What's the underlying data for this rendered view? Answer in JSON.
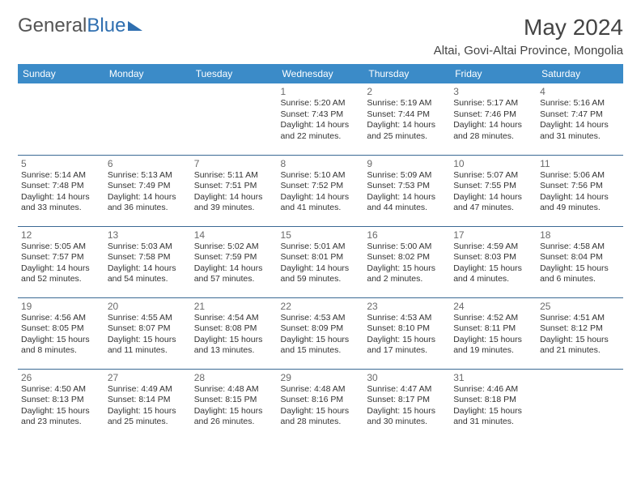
{
  "header": {
    "logo_general": "General",
    "logo_blue": "Blue",
    "title": "May 2024",
    "location": "Altai, Govi-Altai Province, Mongolia"
  },
  "colors": {
    "header_bg": "#3b8bc8",
    "header_text": "#ffffff",
    "row_border": "#3b6a94",
    "daynum_color": "#6a6a6a",
    "body_text": "#333333",
    "logo_blue": "#2f6fb0",
    "logo_grey": "#555555"
  },
  "weekdays": [
    "Sunday",
    "Monday",
    "Tuesday",
    "Wednesday",
    "Thursday",
    "Friday",
    "Saturday"
  ],
  "weeks": [
    [
      {
        "day": "",
        "sunrise": "",
        "sunset": "",
        "daylight_a": "",
        "daylight_b": ""
      },
      {
        "day": "",
        "sunrise": "",
        "sunset": "",
        "daylight_a": "",
        "daylight_b": ""
      },
      {
        "day": "",
        "sunrise": "",
        "sunset": "",
        "daylight_a": "",
        "daylight_b": ""
      },
      {
        "day": "1",
        "sunrise": "Sunrise: 5:20 AM",
        "sunset": "Sunset: 7:43 PM",
        "daylight_a": "Daylight: 14 hours",
        "daylight_b": "and 22 minutes."
      },
      {
        "day": "2",
        "sunrise": "Sunrise: 5:19 AM",
        "sunset": "Sunset: 7:44 PM",
        "daylight_a": "Daylight: 14 hours",
        "daylight_b": "and 25 minutes."
      },
      {
        "day": "3",
        "sunrise": "Sunrise: 5:17 AM",
        "sunset": "Sunset: 7:46 PM",
        "daylight_a": "Daylight: 14 hours",
        "daylight_b": "and 28 minutes."
      },
      {
        "day": "4",
        "sunrise": "Sunrise: 5:16 AM",
        "sunset": "Sunset: 7:47 PM",
        "daylight_a": "Daylight: 14 hours",
        "daylight_b": "and 31 minutes."
      }
    ],
    [
      {
        "day": "5",
        "sunrise": "Sunrise: 5:14 AM",
        "sunset": "Sunset: 7:48 PM",
        "daylight_a": "Daylight: 14 hours",
        "daylight_b": "and 33 minutes."
      },
      {
        "day": "6",
        "sunrise": "Sunrise: 5:13 AM",
        "sunset": "Sunset: 7:49 PM",
        "daylight_a": "Daylight: 14 hours",
        "daylight_b": "and 36 minutes."
      },
      {
        "day": "7",
        "sunrise": "Sunrise: 5:11 AM",
        "sunset": "Sunset: 7:51 PM",
        "daylight_a": "Daylight: 14 hours",
        "daylight_b": "and 39 minutes."
      },
      {
        "day": "8",
        "sunrise": "Sunrise: 5:10 AM",
        "sunset": "Sunset: 7:52 PM",
        "daylight_a": "Daylight: 14 hours",
        "daylight_b": "and 41 minutes."
      },
      {
        "day": "9",
        "sunrise": "Sunrise: 5:09 AM",
        "sunset": "Sunset: 7:53 PM",
        "daylight_a": "Daylight: 14 hours",
        "daylight_b": "and 44 minutes."
      },
      {
        "day": "10",
        "sunrise": "Sunrise: 5:07 AM",
        "sunset": "Sunset: 7:55 PM",
        "daylight_a": "Daylight: 14 hours",
        "daylight_b": "and 47 minutes."
      },
      {
        "day": "11",
        "sunrise": "Sunrise: 5:06 AM",
        "sunset": "Sunset: 7:56 PM",
        "daylight_a": "Daylight: 14 hours",
        "daylight_b": "and 49 minutes."
      }
    ],
    [
      {
        "day": "12",
        "sunrise": "Sunrise: 5:05 AM",
        "sunset": "Sunset: 7:57 PM",
        "daylight_a": "Daylight: 14 hours",
        "daylight_b": "and 52 minutes."
      },
      {
        "day": "13",
        "sunrise": "Sunrise: 5:03 AM",
        "sunset": "Sunset: 7:58 PM",
        "daylight_a": "Daylight: 14 hours",
        "daylight_b": "and 54 minutes."
      },
      {
        "day": "14",
        "sunrise": "Sunrise: 5:02 AM",
        "sunset": "Sunset: 7:59 PM",
        "daylight_a": "Daylight: 14 hours",
        "daylight_b": "and 57 minutes."
      },
      {
        "day": "15",
        "sunrise": "Sunrise: 5:01 AM",
        "sunset": "Sunset: 8:01 PM",
        "daylight_a": "Daylight: 14 hours",
        "daylight_b": "and 59 minutes."
      },
      {
        "day": "16",
        "sunrise": "Sunrise: 5:00 AM",
        "sunset": "Sunset: 8:02 PM",
        "daylight_a": "Daylight: 15 hours",
        "daylight_b": "and 2 minutes."
      },
      {
        "day": "17",
        "sunrise": "Sunrise: 4:59 AM",
        "sunset": "Sunset: 8:03 PM",
        "daylight_a": "Daylight: 15 hours",
        "daylight_b": "and 4 minutes."
      },
      {
        "day": "18",
        "sunrise": "Sunrise: 4:58 AM",
        "sunset": "Sunset: 8:04 PM",
        "daylight_a": "Daylight: 15 hours",
        "daylight_b": "and 6 minutes."
      }
    ],
    [
      {
        "day": "19",
        "sunrise": "Sunrise: 4:56 AM",
        "sunset": "Sunset: 8:05 PM",
        "daylight_a": "Daylight: 15 hours",
        "daylight_b": "and 8 minutes."
      },
      {
        "day": "20",
        "sunrise": "Sunrise: 4:55 AM",
        "sunset": "Sunset: 8:07 PM",
        "daylight_a": "Daylight: 15 hours",
        "daylight_b": "and 11 minutes."
      },
      {
        "day": "21",
        "sunrise": "Sunrise: 4:54 AM",
        "sunset": "Sunset: 8:08 PM",
        "daylight_a": "Daylight: 15 hours",
        "daylight_b": "and 13 minutes."
      },
      {
        "day": "22",
        "sunrise": "Sunrise: 4:53 AM",
        "sunset": "Sunset: 8:09 PM",
        "daylight_a": "Daylight: 15 hours",
        "daylight_b": "and 15 minutes."
      },
      {
        "day": "23",
        "sunrise": "Sunrise: 4:53 AM",
        "sunset": "Sunset: 8:10 PM",
        "daylight_a": "Daylight: 15 hours",
        "daylight_b": "and 17 minutes."
      },
      {
        "day": "24",
        "sunrise": "Sunrise: 4:52 AM",
        "sunset": "Sunset: 8:11 PM",
        "daylight_a": "Daylight: 15 hours",
        "daylight_b": "and 19 minutes."
      },
      {
        "day": "25",
        "sunrise": "Sunrise: 4:51 AM",
        "sunset": "Sunset: 8:12 PM",
        "daylight_a": "Daylight: 15 hours",
        "daylight_b": "and 21 minutes."
      }
    ],
    [
      {
        "day": "26",
        "sunrise": "Sunrise: 4:50 AM",
        "sunset": "Sunset: 8:13 PM",
        "daylight_a": "Daylight: 15 hours",
        "daylight_b": "and 23 minutes."
      },
      {
        "day": "27",
        "sunrise": "Sunrise: 4:49 AM",
        "sunset": "Sunset: 8:14 PM",
        "daylight_a": "Daylight: 15 hours",
        "daylight_b": "and 25 minutes."
      },
      {
        "day": "28",
        "sunrise": "Sunrise: 4:48 AM",
        "sunset": "Sunset: 8:15 PM",
        "daylight_a": "Daylight: 15 hours",
        "daylight_b": "and 26 minutes."
      },
      {
        "day": "29",
        "sunrise": "Sunrise: 4:48 AM",
        "sunset": "Sunset: 8:16 PM",
        "daylight_a": "Daylight: 15 hours",
        "daylight_b": "and 28 minutes."
      },
      {
        "day": "30",
        "sunrise": "Sunrise: 4:47 AM",
        "sunset": "Sunset: 8:17 PM",
        "daylight_a": "Daylight: 15 hours",
        "daylight_b": "and 30 minutes."
      },
      {
        "day": "31",
        "sunrise": "Sunrise: 4:46 AM",
        "sunset": "Sunset: 8:18 PM",
        "daylight_a": "Daylight: 15 hours",
        "daylight_b": "and 31 minutes."
      },
      {
        "day": "",
        "sunrise": "",
        "sunset": "",
        "daylight_a": "",
        "daylight_b": ""
      }
    ]
  ]
}
